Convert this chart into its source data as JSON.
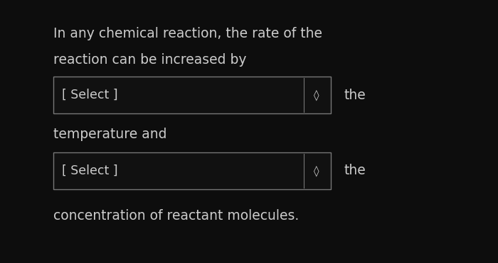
{
  "background_color": "#0d0d0d",
  "text_color": "#cccccc",
  "box_edge_color": "#777777",
  "box_face_color": "#111111",
  "line1": "In any chemical reaction, the rate of the",
  "line2": "reaction can be increased by",
  "box1_text": "[ Select ]",
  "box1_after": "the",
  "line3": "temperature and",
  "box2_text": "[ Select ]",
  "box2_after": "the",
  "line4": "concentration of reactant molecules.",
  "font_size_main": 13.5,
  "font_size_box": 12.5,
  "font_size_inline": 13.5,
  "figwidth": 7.0,
  "figheight": 3.71
}
